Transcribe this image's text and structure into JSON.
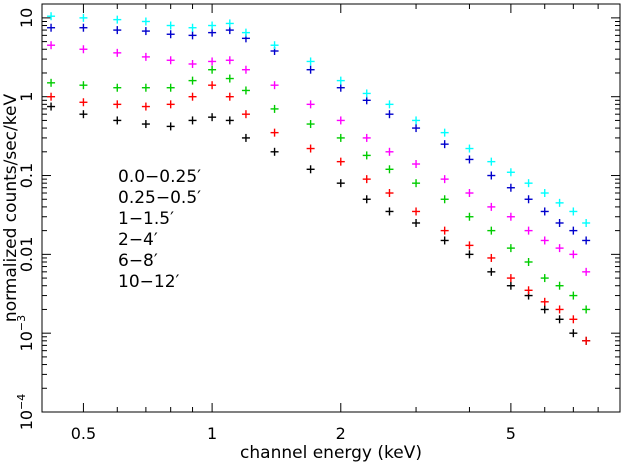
{
  "chart_data": {
    "type": "scatter",
    "xlabel": "channel energy (keV)",
    "ylabel": "normalized counts/sec/keV",
    "x_scale": "log",
    "y_scale": "log",
    "xlim": [
      0.4,
      9.0
    ],
    "ylim": [
      0.0001,
      15
    ],
    "x_ticks": [
      {
        "value": 0.5,
        "label": "0.5"
      },
      {
        "value": 1,
        "label": "1"
      },
      {
        "value": 2,
        "label": "2"
      },
      {
        "value": 5,
        "label": "5"
      }
    ],
    "y_ticks": [
      {
        "value": 0.0001,
        "label": "10",
        "sup": "−4"
      },
      {
        "value": 0.001,
        "label": "10",
        "sup": "−3"
      },
      {
        "value": 0.01,
        "label": "0.01",
        "sup": ""
      },
      {
        "value": 0.1,
        "label": "0.1",
        "sup": ""
      },
      {
        "value": 1,
        "label": "1",
        "sup": ""
      },
      {
        "value": 10,
        "label": "10",
        "sup": ""
      }
    ],
    "legend_position": "left",
    "series": [
      {
        "name": "0.0−0.25′",
        "color": "#000000",
        "x": [
          0.42,
          0.5,
          0.6,
          0.7,
          0.8,
          0.9,
          1.0,
          1.1,
          1.2,
          1.4,
          1.7,
          2.0,
          2.3,
          2.6,
          3.0,
          3.5,
          4.0,
          4.5,
          5.0,
          5.5,
          6.0,
          6.5,
          7.0,
          7.5
        ],
        "y": [
          0.75,
          0.6,
          0.5,
          0.45,
          0.42,
          0.5,
          0.55,
          0.5,
          0.3,
          0.2,
          0.12,
          0.08,
          0.05,
          0.035,
          0.025,
          0.015,
          0.01,
          0.006,
          0.004,
          0.003,
          0.002,
          0.0015,
          0.001,
          0.0008
        ]
      },
      {
        "name": "0.25−0.5′",
        "color": "#ff0000",
        "x": [
          0.42,
          0.5,
          0.6,
          0.7,
          0.8,
          0.9,
          1.0,
          1.1,
          1.2,
          1.4,
          1.7,
          2.0,
          2.3,
          2.6,
          3.0,
          3.5,
          4.0,
          4.5,
          5.0,
          5.5,
          6.0,
          6.5,
          7.0,
          7.5
        ],
        "y": [
          1.0,
          0.85,
          0.8,
          0.75,
          0.8,
          1.0,
          1.4,
          1.0,
          0.6,
          0.35,
          0.22,
          0.15,
          0.09,
          0.06,
          0.035,
          0.02,
          0.013,
          0.009,
          0.005,
          0.0035,
          0.0025,
          0.002,
          0.0015,
          0.0008
        ]
      },
      {
        "name": "1−1.5′",
        "color": "#00cc00",
        "x": [
          0.42,
          0.5,
          0.6,
          0.7,
          0.8,
          0.9,
          1.0,
          1.1,
          1.2,
          1.4,
          1.7,
          2.0,
          2.3,
          2.6,
          3.0,
          3.5,
          4.0,
          4.5,
          5.0,
          5.5,
          6.0,
          6.5,
          7.0,
          7.5
        ],
        "y": [
          1.5,
          1.4,
          1.3,
          1.3,
          1.3,
          1.6,
          2.2,
          1.7,
          1.2,
          0.7,
          0.45,
          0.3,
          0.18,
          0.12,
          0.08,
          0.05,
          0.03,
          0.02,
          0.012,
          0.008,
          0.005,
          0.004,
          0.003,
          0.002
        ]
      },
      {
        "name": "2−4′",
        "color": "#0000cc",
        "x": [
          0.42,
          0.5,
          0.6,
          0.7,
          0.8,
          0.9,
          1.0,
          1.1,
          1.2,
          1.4,
          1.7,
          2.0,
          2.3,
          2.6,
          3.0,
          3.5,
          4.0,
          4.5,
          5.0,
          5.5,
          6.0,
          6.5,
          7.0,
          7.5
        ],
        "y": [
          7.5,
          7.5,
          7.0,
          6.8,
          6.2,
          6.0,
          6.5,
          7.0,
          5.5,
          3.8,
          2.2,
          1.3,
          0.9,
          0.6,
          0.4,
          0.25,
          0.16,
          0.1,
          0.07,
          0.05,
          0.035,
          0.025,
          0.02,
          0.015
        ]
      },
      {
        "name": "6−8′",
        "color": "#00ffff",
        "x": [
          0.42,
          0.5,
          0.6,
          0.7,
          0.8,
          0.9,
          1.0,
          1.1,
          1.2,
          1.4,
          1.7,
          2.0,
          2.3,
          2.6,
          3.0,
          3.5,
          4.0,
          4.5,
          5.0,
          5.5,
          6.0,
          6.5,
          7.0,
          7.5
        ],
        "y": [
          10.5,
          10.0,
          9.5,
          9.0,
          8.0,
          7.5,
          8.0,
          8.5,
          6.5,
          4.5,
          2.8,
          1.6,
          1.1,
          0.8,
          0.5,
          0.35,
          0.22,
          0.15,
          0.11,
          0.08,
          0.06,
          0.045,
          0.035,
          0.025
        ]
      },
      {
        "name": "10−12′",
        "color": "#ff00ff",
        "x": [
          0.42,
          0.5,
          0.6,
          0.7,
          0.8,
          0.9,
          1.0,
          1.1,
          1.2,
          1.4,
          1.7,
          2.0,
          2.3,
          2.6,
          3.0,
          3.5,
          4.0,
          4.5,
          5.0,
          5.5,
          6.0,
          6.5,
          7.0,
          7.5
        ],
        "y": [
          4.5,
          4.0,
          3.6,
          3.2,
          2.9,
          2.6,
          2.8,
          2.9,
          2.2,
          1.4,
          0.8,
          0.5,
          0.3,
          0.2,
          0.14,
          0.09,
          0.06,
          0.04,
          0.03,
          0.02,
          0.015,
          0.012,
          0.01,
          0.006
        ]
      }
    ]
  }
}
